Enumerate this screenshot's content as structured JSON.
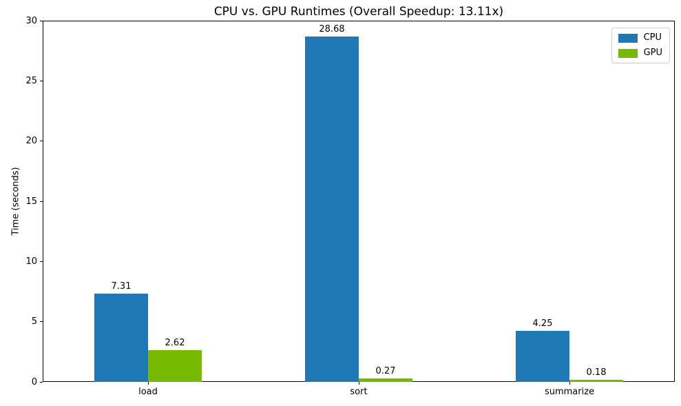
{
  "chart_data": {
    "type": "bar",
    "title": "CPU vs. GPU Runtimes (Overall Speedup: 13.11x)",
    "categories": [
      "load",
      "sort",
      "summarize"
    ],
    "series": [
      {
        "name": "CPU",
        "color": "#1f77b4",
        "values": [
          7.31,
          28.68,
          4.25
        ],
        "labels": [
          "7.31",
          "28.68",
          "4.25"
        ]
      },
      {
        "name": "GPU",
        "color": "#76b900",
        "values": [
          2.62,
          0.27,
          0.18
        ],
        "labels": [
          "2.62",
          "0.27",
          "0.18"
        ]
      }
    ],
    "xlabel": "",
    "ylabel": "Time (seconds)",
    "ylim": [
      0,
      30
    ],
    "yticks": [
      0,
      5,
      10,
      15,
      20,
      25,
      30
    ],
    "grid": false,
    "background": "#ffffff",
    "legend": {
      "position": "upper right",
      "entries": [
        "CPU",
        "GPU"
      ]
    }
  }
}
